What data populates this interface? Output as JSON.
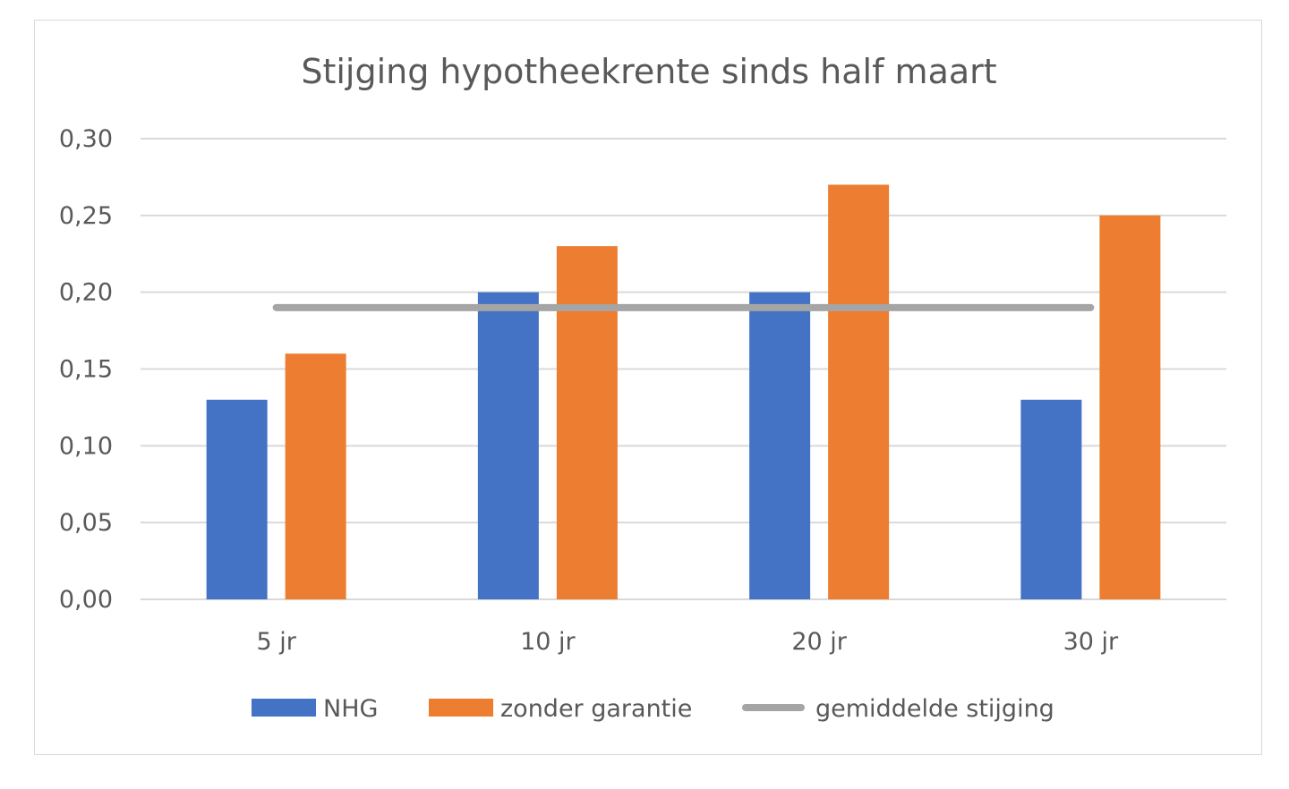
{
  "chart_data": {
    "type": "bar",
    "title": "Stijging hypotheekrente sinds half maart",
    "categories": [
      "5 jr",
      "10 jr",
      "20 jr",
      "30 jr"
    ],
    "series": [
      {
        "name": "NHG",
        "kind": "bar",
        "color": "#4472c4",
        "values": [
          0.13,
          0.2,
          0.2,
          0.13
        ]
      },
      {
        "name": "zonder garantie",
        "kind": "bar",
        "color": "#ed7d31",
        "values": [
          0.16,
          0.23,
          0.27,
          0.25
        ]
      },
      {
        "name": "gemiddelde stijging",
        "kind": "line",
        "color": "#a5a5a5",
        "values": [
          0.19,
          0.19,
          0.19,
          0.19
        ]
      }
    ],
    "ylim": [
      0,
      0.3
    ],
    "yticks": [
      "0,00",
      "0,05",
      "0,10",
      "0,15",
      "0,20",
      "0,25",
      "0,30"
    ],
    "xlabel": "",
    "ylabel": "",
    "grid": true,
    "legend": "bottom"
  }
}
